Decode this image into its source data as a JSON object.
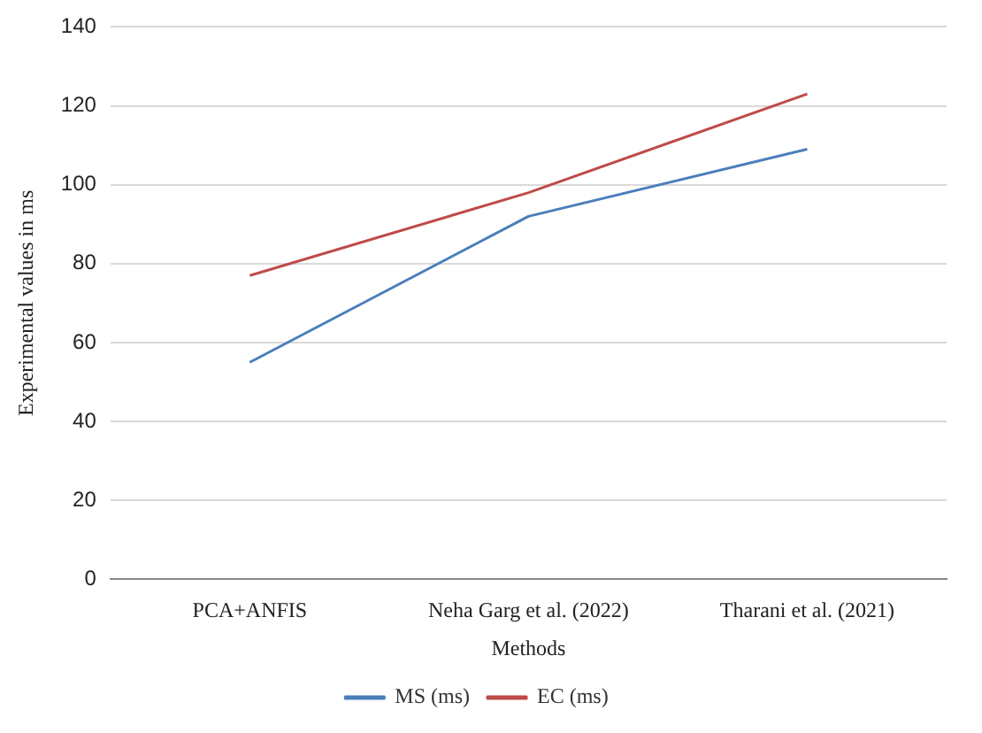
{
  "chart_data": {
    "type": "line",
    "xlabel": "Methods",
    "ylabel": "Experimental values in ms",
    "categories": [
      "PCA+ANFIS",
      "Neha Garg et al. (2022)",
      "Tharani et al. (2021)"
    ],
    "series": [
      {
        "name": "MS (ms)",
        "color": "#4a7ebb",
        "values": [
          55,
          92,
          109
        ]
      },
      {
        "name": "EC (ms)",
        "color": "#be4b48",
        "values": [
          77,
          98,
          123
        ]
      }
    ],
    "ylim": [
      0,
      140
    ],
    "yticks": [
      0,
      20,
      40,
      60,
      80,
      100,
      120,
      140
    ],
    "grid": "y",
    "legend": "bottom",
    "marker": "none"
  }
}
